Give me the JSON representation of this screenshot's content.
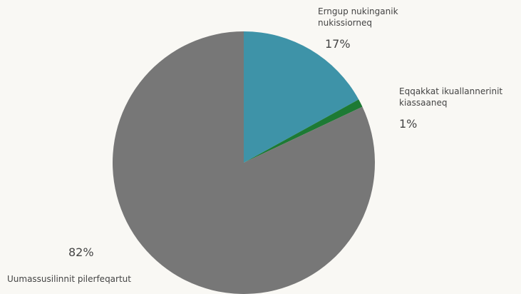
{
  "chart_data": {
    "type": "pie",
    "categories": [
      "Erngup nukinganik nukissiorneq",
      "Eqqakkat ikuallannerinit kiassaaneq",
      "Uumassusilinnit pilerfeqartut"
    ],
    "values": [
      17,
      1,
      82
    ],
    "value_labels": [
      "17%",
      "1%",
      "82%"
    ],
    "colors": [
      "#3e93a8",
      "#1d7a34",
      "#777777"
    ]
  }
}
